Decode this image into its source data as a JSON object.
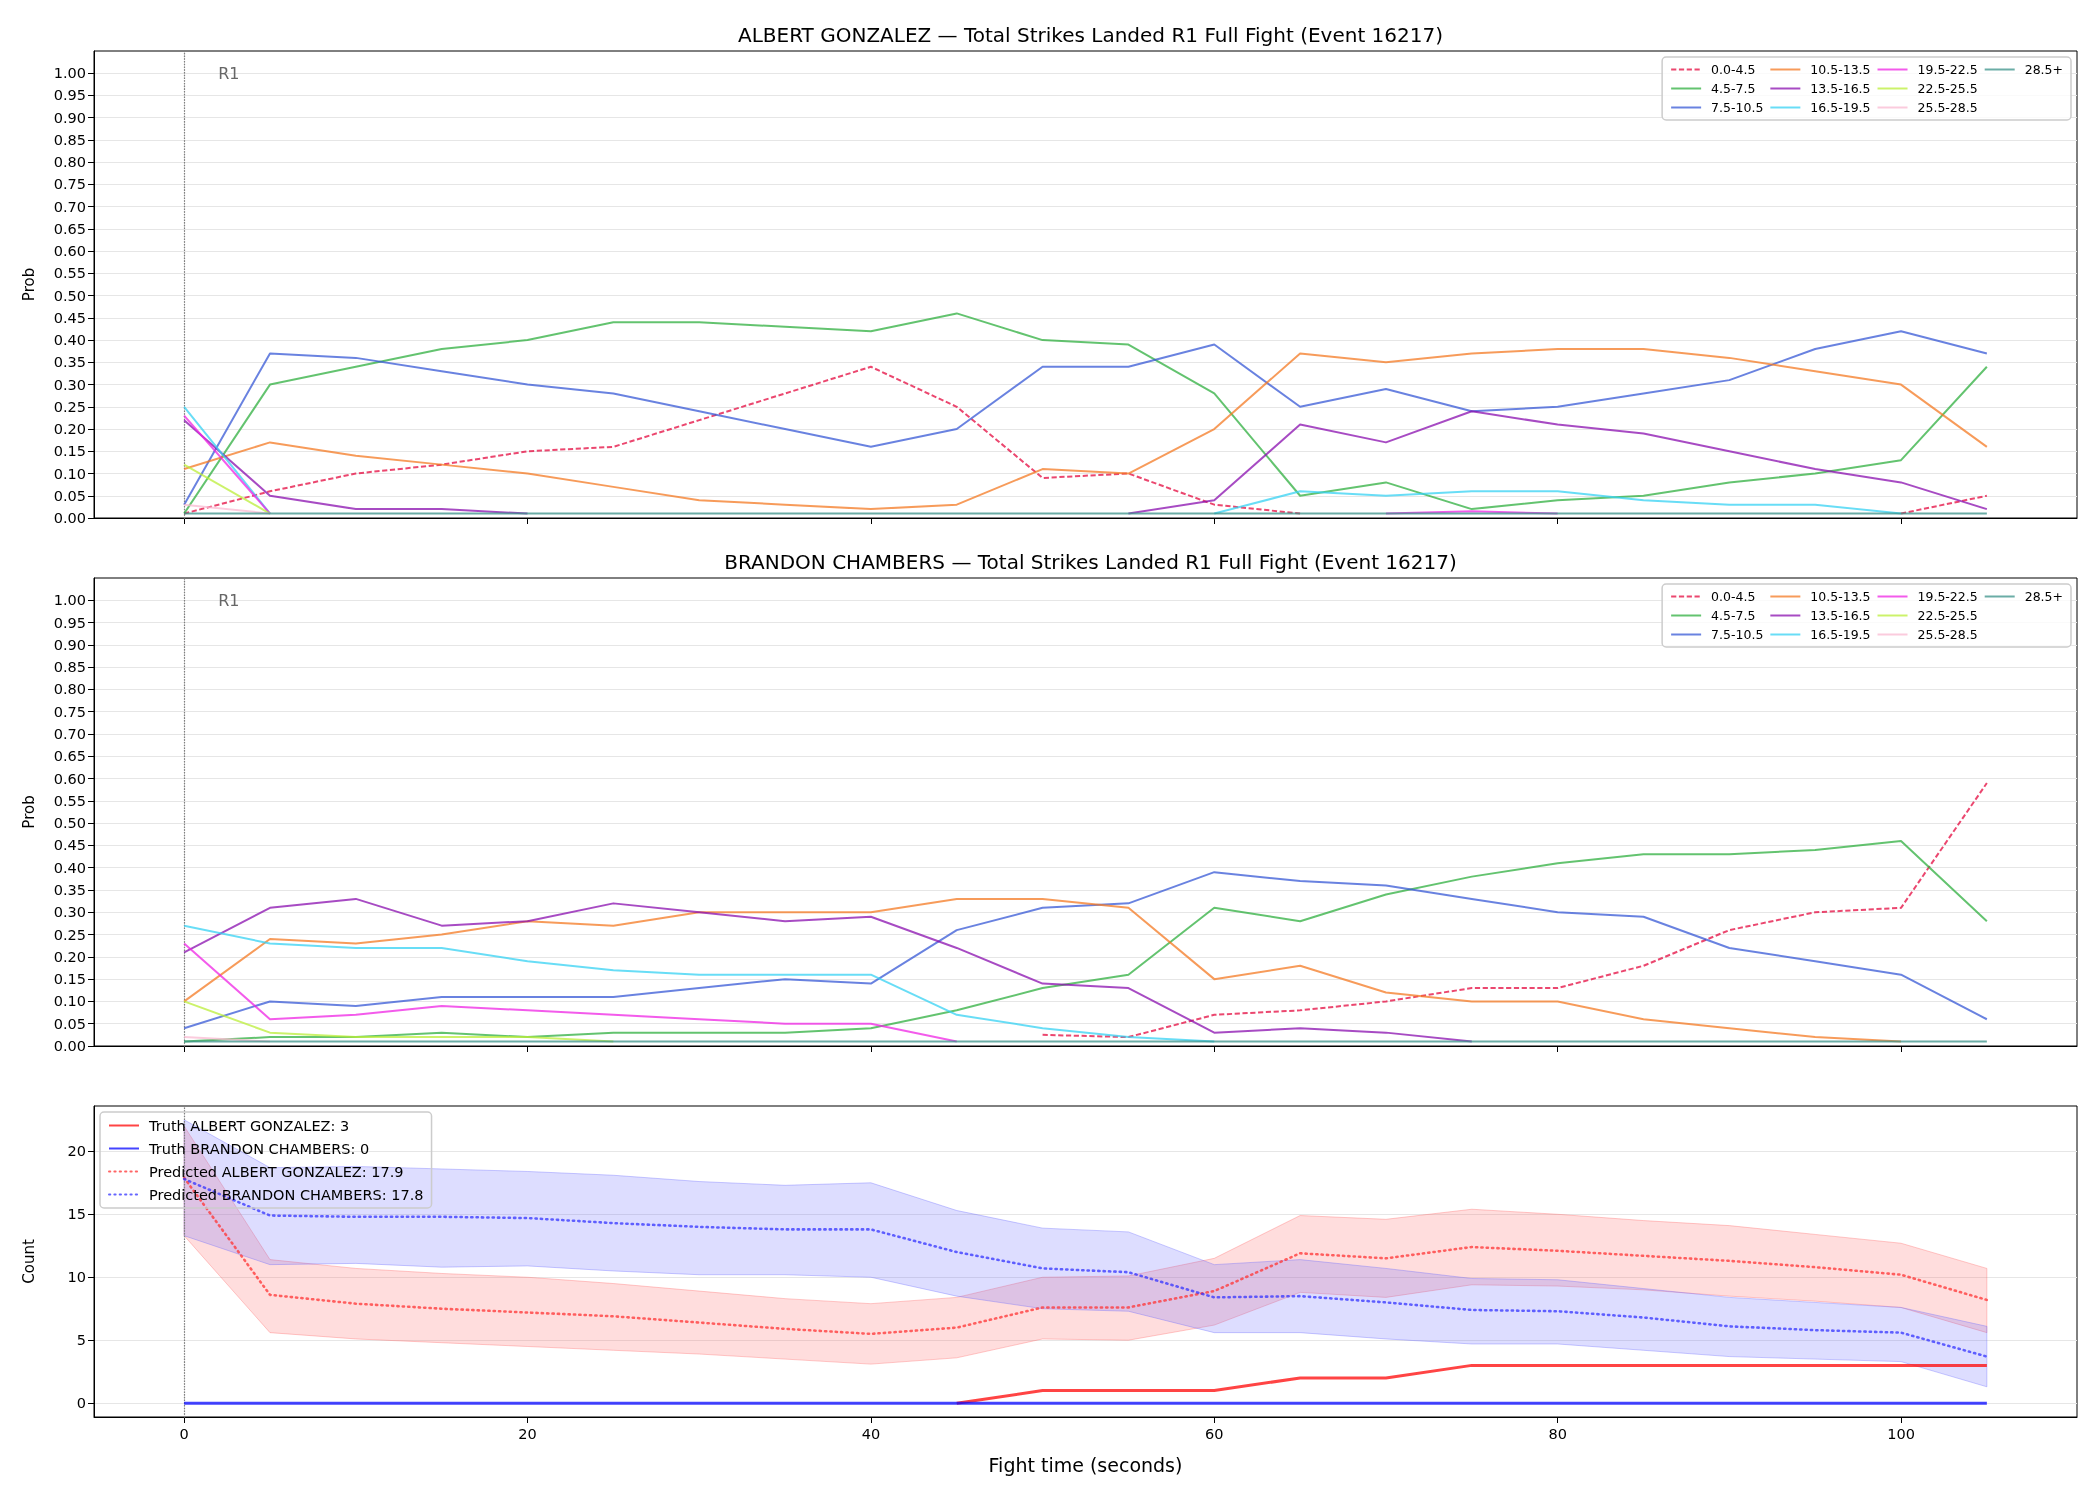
{
  "chart_data": [
    {
      "type": "line",
      "title": "ALBERT GONZALEZ — Total Strikes Landed R1 Full Fight (Event 16217)",
      "ylabel": "Prob",
      "x": [
        0,
        5,
        10,
        15,
        20,
        25,
        30,
        35,
        40,
        45,
        50,
        55,
        60,
        65,
        70,
        75,
        80,
        85,
        90,
        95,
        100,
        105
      ],
      "series": [
        {
          "name": "0.0-4.5",
          "color": "#eb476f",
          "line_style": "dashed",
          "values": [
            0.01,
            0.06,
            0.1,
            0.12,
            0.15,
            0.16,
            0.22,
            0.28,
            0.34,
            0.25,
            0.09,
            0.1,
            0.03,
            0.01,
            null,
            null,
            null,
            null,
            null,
            null,
            0.01,
            0.05
          ]
        },
        {
          "name": "4.5-7.5",
          "color": "#63c36f",
          "values": [
            0.01,
            0.3,
            0.34,
            0.38,
            0.4,
            0.44,
            0.44,
            0.43,
            0.42,
            0.46,
            0.4,
            0.39,
            0.28,
            0.05,
            0.08,
            0.02,
            0.04,
            0.05,
            0.08,
            0.1,
            0.13,
            0.34
          ]
        },
        {
          "name": "7.5-10.5",
          "color": "#6982e0",
          "values": [
            0.03,
            0.37,
            0.36,
            0.33,
            0.3,
            0.28,
            0.24,
            0.2,
            0.16,
            0.2,
            0.34,
            0.34,
            0.39,
            0.25,
            0.29,
            0.24,
            0.25,
            0.28,
            0.31,
            0.38,
            0.42,
            0.37
          ]
        },
        {
          "name": "10.5-13.5",
          "color": "#f79b5a",
          "values": [
            0.11,
            0.17,
            0.14,
            0.12,
            0.1,
            0.07,
            0.04,
            0.03,
            0.02,
            0.03,
            0.11,
            0.1,
            0.2,
            0.37,
            0.35,
            0.37,
            0.38,
            0.38,
            0.36,
            0.33,
            0.3,
            0.16
          ]
        },
        {
          "name": "13.5-16.5",
          "color": "#a74bc3",
          "values": [
            0.22,
            0.05,
            0.02,
            0.02,
            0.01,
            null,
            null,
            null,
            null,
            null,
            null,
            0.01,
            0.04,
            0.21,
            0.17,
            0.24,
            0.21,
            0.19,
            0.15,
            0.11,
            0.08,
            0.02
          ]
        },
        {
          "name": "16.5-19.5",
          "color": "#68ddf6",
          "values": [
            0.25,
            0.01,
            null,
            null,
            null,
            null,
            null,
            null,
            null,
            null,
            null,
            null,
            0.01,
            0.06,
            0.05,
            0.06,
            0.06,
            0.04,
            0.03,
            0.03,
            0.01,
            null
          ]
        },
        {
          "name": "19.5-22.5",
          "color": "#f35beb",
          "values": [
            0.23,
            0.01,
            null,
            null,
            null,
            null,
            null,
            null,
            null,
            null,
            null,
            null,
            null,
            null,
            0.01,
            0.015,
            0.01,
            null,
            null,
            null,
            null,
            null
          ]
        },
        {
          "name": "22.5-25.5",
          "color": "#ccf26a",
          "values": [
            0.12,
            0.01,
            null,
            null,
            null,
            null,
            null,
            null,
            null,
            null,
            null,
            null,
            null,
            null,
            null,
            null,
            null,
            null,
            null,
            null,
            null,
            null
          ]
        },
        {
          "name": "25.5-28.5",
          "color": "#fbcbdd",
          "values": [
            0.03,
            0.01,
            null,
            null,
            null,
            null,
            null,
            null,
            null,
            null,
            null,
            null,
            null,
            null,
            null,
            null,
            null,
            null,
            null,
            null,
            null,
            null
          ]
        },
        {
          "name": "28.5+",
          "color": "#6bada6",
          "values": [
            0.01,
            0.01,
            0.01,
            0.01,
            0.01,
            0.01,
            0.01,
            0.01,
            0.01,
            0.01,
            0.01,
            0.01,
            0.01,
            0.01,
            0.01,
            0.01,
            0.01,
            0.01,
            0.01,
            0.01,
            0.01,
            0.01
          ]
        }
      ],
      "xlim": [
        -5.25,
        110.25
      ],
      "xticks": [
        0,
        20,
        40,
        60,
        80,
        100
      ],
      "ylim": [
        0,
        1.05
      ],
      "yticks": [
        {
          "value": 0,
          "label": "0.00"
        },
        0.05,
        {
          "value": 0.1,
          "label": "0.10"
        },
        0.15,
        {
          "value": 0.2,
          "label": "0.20"
        },
        0.25,
        {
          "value": 0.3,
          "label": "0.30"
        },
        0.35,
        {
          "value": 0.4,
          "label": "0.40"
        },
        0.45,
        {
          "value": 0.5,
          "label": "0.50"
        },
        0.55,
        {
          "value": 0.6,
          "label": "0.60"
        },
        0.65,
        {
          "value": 0.7,
          "label": "0.70"
        },
        0.75,
        {
          "value": 0.8,
          "label": "0.80"
        },
        0.85,
        {
          "value": 0.9,
          "label": "0.90"
        },
        0.95,
        {
          "value": 1,
          "label": "1.00"
        }
      ],
      "grid": "y",
      "legend": "top right",
      "tick_labels": "y",
      "ref_lines": [
        {
          "axis": "x",
          "value": 0,
          "label": "R1",
          "color": "#808080",
          "line_style": "dotted"
        }
      ]
    },
    {
      "type": "line",
      "title": "BRANDON CHAMBERS — Total Strikes Landed R1 Full Fight (Event 16217)",
      "ylabel": "Prob",
      "x": [
        0,
        5,
        10,
        15,
        20,
        25,
        30,
        35,
        40,
        45,
        50,
        55,
        60,
        65,
        70,
        75,
        80,
        85,
        90,
        95,
        100,
        105
      ],
      "series": [
        {
          "name": "0.0-4.5",
          "color": "#eb476f",
          "line_style": "dashed",
          "values": [
            null,
            null,
            null,
            null,
            null,
            null,
            null,
            null,
            null,
            null,
            0.025,
            0.02,
            0.07,
            0.08,
            0.1,
            0.13,
            0.13,
            0.18,
            0.26,
            0.3,
            0.31,
            0.59
          ]
        },
        {
          "name": "4.5-7.5",
          "color": "#63c36f",
          "values": [
            0.01,
            0.02,
            0.02,
            0.03,
            0.02,
            0.03,
            0.03,
            0.03,
            0.04,
            0.08,
            0.13,
            0.16,
            0.31,
            0.28,
            0.34,
            0.38,
            0.41,
            0.43,
            0.43,
            0.44,
            0.46,
            0.28
          ]
        },
        {
          "name": "7.5-10.5",
          "color": "#6982e0",
          "values": [
            0.04,
            0.1,
            0.09,
            0.11,
            0.11,
            0.11,
            0.13,
            0.15,
            0.14,
            0.26,
            0.31,
            0.32,
            0.39,
            0.37,
            0.36,
            0.33,
            0.3,
            0.29,
            0.22,
            0.19,
            0.16,
            0.06
          ]
        },
        {
          "name": "10.5-13.5",
          "color": "#f79b5a",
          "values": [
            0.1,
            0.24,
            0.23,
            0.25,
            0.28,
            0.27,
            0.3,
            0.3,
            0.3,
            0.33,
            0.33,
            0.31,
            0.15,
            0.18,
            0.12,
            0.1,
            0.1,
            0.06,
            0.04,
            0.02,
            0.01,
            null
          ]
        },
        {
          "name": "13.5-16.5",
          "color": "#a74bc3",
          "values": [
            0.21,
            0.31,
            0.33,
            0.27,
            0.28,
            0.32,
            0.3,
            0.28,
            0.29,
            0.22,
            0.14,
            0.13,
            0.03,
            0.04,
            0.03,
            0.01,
            null,
            null,
            null,
            null,
            null,
            null
          ]
        },
        {
          "name": "16.5-19.5",
          "color": "#68ddf6",
          "values": [
            0.27,
            0.23,
            0.22,
            0.22,
            0.19,
            0.17,
            0.16,
            0.16,
            0.16,
            0.07,
            0.04,
            0.02,
            0.01,
            null,
            null,
            null,
            null,
            null,
            null,
            null,
            null,
            null
          ]
        },
        {
          "name": "19.5-22.5",
          "color": "#f35beb",
          "values": [
            0.23,
            0.06,
            0.07,
            0.09,
            0.08,
            0.07,
            0.06,
            0.05,
            0.05,
            0.01,
            null,
            null,
            null,
            null,
            null,
            null,
            null,
            null,
            null,
            null,
            null,
            null
          ]
        },
        {
          "name": "22.5-25.5",
          "color": "#ccf26a",
          "values": [
            0.1,
            0.03,
            0.02,
            0.02,
            0.02,
            0.01,
            null,
            null,
            null,
            null,
            null,
            null,
            null,
            null,
            null,
            null,
            null,
            null,
            null,
            null,
            null,
            null
          ]
        },
        {
          "name": "25.5-28.5",
          "color": "#fbcbdd",
          "values": [
            0.02,
            0.01,
            null,
            null,
            null,
            null,
            null,
            null,
            null,
            null,
            null,
            null,
            null,
            null,
            null,
            null,
            null,
            null,
            null,
            null,
            null,
            null
          ]
        },
        {
          "name": "28.5+",
          "color": "#6bada6",
          "values": [
            0.01,
            0.01,
            0.01,
            0.01,
            0.01,
            0.01,
            0.01,
            0.01,
            0.01,
            0.01,
            0.01,
            0.01,
            0.01,
            0.01,
            0.01,
            0.01,
            0.01,
            0.01,
            0.01,
            0.01,
            0.01,
            0.01
          ]
        }
      ],
      "xlim": [
        -5.25,
        110.25
      ],
      "xticks": [
        0,
        20,
        40,
        60,
        80,
        100
      ],
      "ylim": [
        0,
        1.05
      ],
      "yticks": [
        {
          "value": 0,
          "label": "0.00"
        },
        0.05,
        {
          "value": 0.1,
          "label": "0.10"
        },
        0.15,
        {
          "value": 0.2,
          "label": "0.20"
        },
        0.25,
        {
          "value": 0.3,
          "label": "0.30"
        },
        0.35,
        {
          "value": 0.4,
          "label": "0.40"
        },
        0.45,
        {
          "value": 0.5,
          "label": "0.50"
        },
        0.55,
        {
          "value": 0.6,
          "label": "0.60"
        },
        0.65,
        {
          "value": 0.7,
          "label": "0.70"
        },
        0.75,
        {
          "value": 0.8,
          "label": "0.80"
        },
        0.85,
        {
          "value": 0.9,
          "label": "0.90"
        },
        0.95,
        {
          "value": 1,
          "label": "1.00"
        }
      ],
      "grid": "y",
      "legend": "top right",
      "tick_labels": "y",
      "ref_lines": [
        {
          "axis": "x",
          "value": 0,
          "label": "R1",
          "color": "#808080",
          "line_style": "dotted"
        }
      ]
    },
    {
      "type": "line",
      "xlabel": "Fight time (seconds)",
      "ylabel": "Count",
      "x": [
        0,
        5,
        10,
        15,
        20,
        25,
        30,
        35,
        40,
        45,
        50,
        55,
        60,
        65,
        70,
        75,
        80,
        85,
        90,
        95,
        100,
        105
      ],
      "series": [
        {
          "name": "Truth ALBERT GONZALEZ: 3",
          "color": "#ff4444",
          "values": [
            null,
            null,
            null,
            null,
            null,
            null,
            null,
            null,
            null,
            0,
            1,
            1,
            1,
            2,
            2,
            3,
            3,
            3,
            3,
            3,
            3,
            3
          ]
        },
        {
          "name": "Truth BRANDON CHAMBERS: 0",
          "color": "#4444ff",
          "values": [
            0,
            0,
            0,
            0,
            0,
            0,
            0,
            0,
            0,
            0,
            0,
            0,
            0,
            0,
            0,
            0,
            0,
            0,
            0,
            0,
            0,
            0
          ]
        },
        {
          "name": "Predicted ALBERT GONZALEZ: 17.9",
          "color": "#ff6666",
          "line_style": "dotted",
          "values": [
            17.9,
            8.6,
            7.9,
            7.5,
            7.2,
            6.9,
            6.4,
            5.9,
            5.5,
            6.0,
            7.6,
            7.6,
            8.9,
            11.9,
            11.5,
            12.4,
            12.1,
            11.7,
            11.3,
            10.8,
            10.2,
            8.2
          ],
          "lower": [
            13.3,
            5.6,
            5.1,
            4.8,
            4.5,
            4.2,
            3.9,
            3.5,
            3.1,
            3.6,
            5.1,
            5.0,
            6.2,
            8.8,
            8.4,
            9.4,
            9.3,
            9.0,
            8.5,
            8.1,
            7.6,
            5.6
          ],
          "upper": [
            22.0,
            11.4,
            10.7,
            10.3,
            10.0,
            9.5,
            8.9,
            8.3,
            7.9,
            8.4,
            10.0,
            10.1,
            11.5,
            14.9,
            14.6,
            15.4,
            15.0,
            14.5,
            14.1,
            13.4,
            12.7,
            10.7
          ]
        },
        {
          "name": "Predicted BRANDON CHAMBERS: 17.8",
          "color": "#6666ff",
          "line_style": "dotted",
          "values": [
            17.8,
            14.9,
            14.8,
            14.8,
            14.7,
            14.3,
            14.0,
            13.8,
            13.8,
            12.0,
            10.7,
            10.4,
            8.4,
            8.5,
            8.0,
            7.4,
            7.3,
            6.8,
            6.1,
            5.8,
            5.6,
            3.7
          ],
          "lower": [
            13.3,
            11.0,
            11.1,
            10.8,
            10.9,
            10.5,
            10.2,
            10.2,
            10.0,
            8.5,
            7.5,
            7.3,
            5.6,
            5.6,
            5.1,
            4.7,
            4.7,
            4.2,
            3.7,
            3.5,
            3.3,
            1.3
          ],
          "upper": [
            22.5,
            18.7,
            18.8,
            18.6,
            18.4,
            18.1,
            17.6,
            17.3,
            17.5,
            15.3,
            13.9,
            13.6,
            11.0,
            11.4,
            10.7,
            9.9,
            9.8,
            9.1,
            8.4,
            8.0,
            7.6,
            6.1
          ]
        }
      ],
      "xlim": [
        -5.25,
        110.25
      ],
      "xticks": [
        0,
        20,
        40,
        60,
        80,
        100
      ],
      "ylim": [
        -1.1,
        23.6
      ],
      "yticks": [
        0,
        5,
        10,
        15,
        20
      ],
      "grid": "y",
      "legend": "top left",
      "ref_lines": [
        {
          "axis": "x",
          "value": 0,
          "color": "#808080",
          "line_style": "dotted"
        }
      ]
    }
  ]
}
